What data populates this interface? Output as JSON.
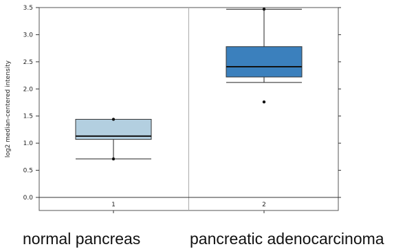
{
  "chart_data": {
    "type": "box",
    "ylabel": "log2 median-centered intensity",
    "xlabel": "",
    "ylim": [
      0.0,
      3.5
    ],
    "yticks": [
      "0.0",
      "0.5",
      "1.0",
      "1.5",
      "2.0",
      "2.5",
      "3.0",
      "3.5"
    ],
    "categories": [
      "1",
      "2"
    ],
    "group_labels": [
      "normal pancreas",
      "pancreatic adenocarcinoma"
    ],
    "grid": false,
    "baseline_y": 0.0,
    "boxes": [
      {
        "category": "1",
        "whisker_low": 0.71,
        "q1": 1.07,
        "median": 1.13,
        "q3": 1.44,
        "whisker_high": 1.44,
        "points": [
          1.44,
          0.71
        ],
        "color": "#b3cfe0"
      },
      {
        "category": "2",
        "whisker_low": 2.12,
        "q1": 2.22,
        "median": 2.41,
        "q3": 2.78,
        "whisker_high": 3.47,
        "points": [
          3.47,
          1.76
        ],
        "color": "#3b80bd"
      }
    ]
  }
}
